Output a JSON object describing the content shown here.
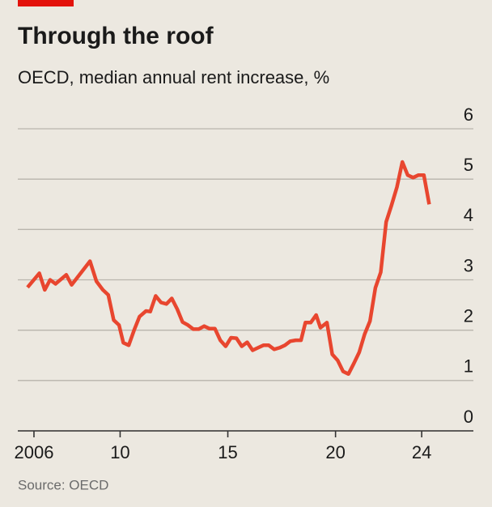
{
  "chart_data": {
    "type": "line",
    "title": "Through the roof",
    "subtitle": "OECD, median annual rent increase, %",
    "source": "Source: OECD",
    "color": "#e8462f",
    "grid": true,
    "x": [
      2005.7,
      2006.25,
      2006.5,
      2006.75,
      2007.0,
      2007.5,
      2007.75,
      2008.6,
      2008.9,
      2009.2,
      2009.45,
      2009.7,
      2009.95,
      2010.15,
      2010.4,
      2010.65,
      2010.9,
      2011.2,
      2011.4,
      2011.65,
      2011.9,
      2012.15,
      2012.4,
      2012.65,
      2012.9,
      2013.15,
      2013.4,
      2013.65,
      2013.9,
      2014.15,
      2014.4,
      2014.65,
      2014.9,
      2015.15,
      2015.4,
      2015.65,
      2015.9,
      2016.15,
      2016.4,
      2016.65,
      2016.9,
      2017.15,
      2017.4,
      2017.65,
      2017.9,
      2018.15,
      2018.4,
      2018.6,
      2018.85,
      2019.1,
      2019.3,
      2019.6,
      2019.85,
      2020.1,
      2020.35,
      2020.6,
      2020.85,
      2021.1,
      2021.35,
      2021.6,
      2021.85,
      2022.1,
      2022.35,
      2022.6,
      2022.85,
      2023.1,
      2023.35,
      2023.6,
      2023.85,
      2024.1,
      2024.35
    ],
    "values": [
      2.85,
      3.13,
      2.8,
      3.0,
      2.92,
      3.1,
      2.9,
      3.37,
      2.97,
      2.8,
      2.7,
      2.2,
      2.1,
      1.75,
      1.7,
      2.0,
      2.27,
      2.38,
      2.37,
      2.68,
      2.55,
      2.52,
      2.63,
      2.42,
      2.16,
      2.1,
      2.02,
      2.02,
      2.08,
      2.03,
      2.03,
      1.8,
      1.68,
      1.85,
      1.84,
      1.68,
      1.76,
      1.6,
      1.65,
      1.7,
      1.7,
      1.62,
      1.65,
      1.7,
      1.78,
      1.8,
      1.8,
      2.15,
      2.15,
      2.3,
      2.05,
      2.15,
      1.52,
      1.4,
      1.18,
      1.13,
      1.34,
      1.56,
      1.92,
      2.18,
      2.84,
      3.15,
      4.15,
      4.48,
      4.84,
      5.34,
      5.08,
      5.03,
      5.08,
      5.08,
      4.5
    ],
    "xlim": [
      2005.25,
      2026.4
    ],
    "xticks": [
      {
        "value": 2006,
        "label": "2006"
      },
      {
        "value": 2010,
        "label": "10"
      },
      {
        "value": 2015,
        "label": "15"
      },
      {
        "value": 2020,
        "label": "20"
      },
      {
        "value": 2024,
        "label": "24"
      }
    ],
    "ylim": [
      0,
      6
    ],
    "yticks": [
      0,
      1,
      2,
      3,
      4,
      5,
      6
    ]
  }
}
